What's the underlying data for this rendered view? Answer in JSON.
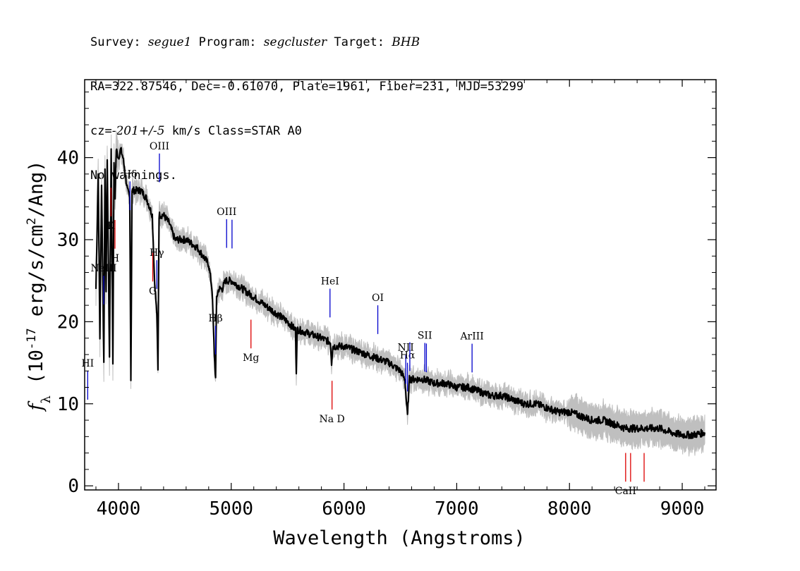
{
  "header": {
    "survey_label": "Survey:",
    "survey": "segue1",
    "program_label": "Program:",
    "program": "segcluster",
    "target_label": "Target:",
    "target": "BHB",
    "line2": "RA=322.87546, Dec=-0.61070, Plate=1961, Fiber=231, MJD=53299",
    "cz_label": "cz=",
    "cz_value": "-201+/-5",
    "cz_rest": " km/s Class=STAR A0",
    "line4": "No warnings."
  },
  "colors": {
    "spectrum": "#000000",
    "error_band": "#bfbfbf",
    "emission_marker": "#0000cc",
    "absorption_marker": "#dd0000"
  },
  "chart_data": {
    "type": "line",
    "xlabel": "Wavelength (Angstroms)",
    "ylabel": "f_λ (10^-17 erg/s/cm^2/Ang)",
    "xlim": [
      3700,
      9300
    ],
    "ylim": [
      -0.5,
      49.5
    ],
    "x_ticks": [
      4000,
      5000,
      6000,
      7000,
      8000,
      9000
    ],
    "y_ticks": [
      0,
      10,
      20,
      30,
      40
    ],
    "grid": false,
    "series": [
      {
        "x": [
          3800,
          3820,
          3835,
          3850,
          3870,
          3880,
          3890,
          3900,
          3920,
          3935,
          3950,
          3960,
          3970,
          3980,
          4000,
          4020,
          4040,
          4060,
          4080,
          4100,
          4110,
          4120,
          4150,
          4200,
          4250,
          4300,
          4320,
          4340,
          4350,
          4360,
          4400,
          4450,
          4500,
          4600,
          4700,
          4800,
          4830,
          4850,
          4861,
          4870,
          4890,
          4920,
          4950,
          5000,
          5100,
          5200,
          5300,
          5400,
          5500,
          5570,
          5577,
          5585,
          5600,
          5700,
          5800,
          5880,
          5890,
          5900,
          6000,
          6100,
          6200,
          6300,
          6400,
          6500,
          6540,
          6563,
          6580,
          6600,
          6700,
          6800,
          6900,
          7000,
          7100,
          7200,
          7300,
          7400,
          7500,
          7600,
          7700,
          7800,
          7900,
          8000,
          8100,
          8200,
          8300,
          8400,
          8500,
          8550,
          8600,
          8700,
          8800,
          8900,
          9000,
          9100,
          9200
        ],
        "y": [
          24,
          38,
          18,
          37,
          15,
          39,
          24,
          40,
          16,
          41,
          15,
          39,
          35,
          41,
          40,
          41,
          40,
          38,
          36,
          35,
          13,
          36,
          36,
          36,
          35,
          33,
          25,
          21,
          14,
          33,
          33,
          32,
          30,
          30,
          29,
          27,
          24,
          16,
          13,
          23,
          24,
          24,
          25,
          25,
          24,
          23,
          22,
          21,
          20,
          19,
          14,
          19,
          19,
          18.5,
          18,
          17.5,
          15,
          17,
          17,
          16.5,
          16,
          15.5,
          15,
          14,
          13,
          8.5,
          13,
          13,
          13,
          12.5,
          12.5,
          12,
          12,
          11.5,
          11,
          11,
          10.5,
          10,
          10,
          9.5,
          9,
          9,
          8.5,
          8,
          8,
          7.5,
          7,
          7,
          7,
          7,
          7,
          6.5,
          6.2,
          6.2,
          6.5
        ]
      }
    ],
    "annotations_emission": [
      {
        "label": "HI",
        "wavelength": 3727
      },
      {
        "label": "NeIII",
        "wavelength": 3869
      },
      {
        "label": "Hδ",
        "wavelength": 4102
      },
      {
        "label": "Hγ",
        "wavelength": 4340
      },
      {
        "label": "OIII",
        "wavelength": 4363
      },
      {
        "label": "Hβ",
        "wavelength": 4861
      },
      {
        "label": "OIII",
        "wavelength": 4959
      },
      {
        "label": "OIII",
        "wavelength": 5007
      },
      {
        "label": "HeI",
        "wavelength": 5876
      },
      {
        "label": "OI",
        "wavelength": 6300
      },
      {
        "label": "NII",
        "wavelength": 6548
      },
      {
        "label": "Hα",
        "wavelength": 6563
      },
      {
        "label": "NII",
        "wavelength": 6584
      },
      {
        "label": "SII",
        "wavelength": 6717
      },
      {
        "label": "SII",
        "wavelength": 6731
      },
      {
        "label": "ArIII",
        "wavelength": 7136
      }
    ],
    "annotations_absorption": [
      {
        "label": "K",
        "wavelength": 3934
      },
      {
        "label": "H",
        "wavelength": 3969
      },
      {
        "label": "G",
        "wavelength": 4304
      },
      {
        "label": "Mg",
        "wavelength": 5175
      },
      {
        "label": "Na D",
        "wavelength": 5894
      },
      {
        "label": "CaII",
        "wavelength": 8498
      },
      {
        "label": "CaII",
        "wavelength": 8542
      },
      {
        "label": "CaII",
        "wavelength": 8662
      }
    ]
  }
}
